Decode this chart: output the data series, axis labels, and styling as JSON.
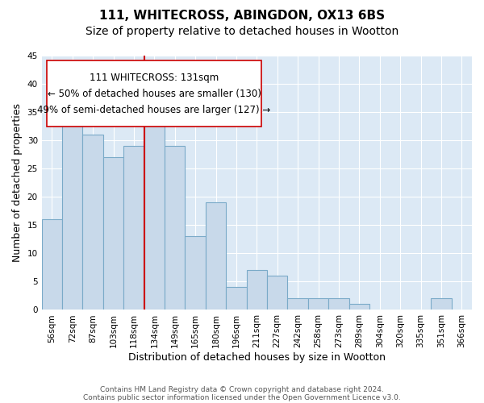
{
  "title": "111, WHITECROSS, ABINGDON, OX13 6BS",
  "subtitle": "Size of property relative to detached houses in Wootton",
  "xlabel": "Distribution of detached houses by size in Wootton",
  "ylabel": "Number of detached properties",
  "footer_lines": [
    "Contains HM Land Registry data © Crown copyright and database right 2024.",
    "Contains public sector information licensed under the Open Government Licence v3.0."
  ],
  "bins": [
    "56sqm",
    "72sqm",
    "87sqm",
    "103sqm",
    "118sqm",
    "134sqm",
    "149sqm",
    "165sqm",
    "180sqm",
    "196sqm",
    "211sqm",
    "227sqm",
    "242sqm",
    "258sqm",
    "273sqm",
    "289sqm",
    "304sqm",
    "320sqm",
    "335sqm",
    "351sqm",
    "366sqm"
  ],
  "values": [
    16,
    36,
    31,
    27,
    29,
    33,
    29,
    13,
    19,
    4,
    7,
    6,
    2,
    2,
    2,
    1,
    0,
    0,
    0,
    2,
    0
  ],
  "bar_color": "#c8d9ea",
  "bar_edge_color": "#7aaac8",
  "vline_x_idx": 5,
  "vline_color": "#cc0000",
  "annotation_box_text": "111 WHITECROSS: 131sqm\n← 50% of detached houses are smaller (130)\n49% of semi-detached houses are larger (127) →",
  "annotation_box_edge_color": "#cc0000",
  "annotation_fontsize": 8.5,
  "ylim": [
    0,
    45
  ],
  "yticks": [
    0,
    5,
    10,
    15,
    20,
    25,
    30,
    35,
    40,
    45
  ],
  "title_fontsize": 11,
  "subtitle_fontsize": 10,
  "xlabel_fontsize": 9,
  "ylabel_fontsize": 9,
  "tick_fontsize": 7.5,
  "footer_fontsize": 6.5,
  "bg_color": "#ffffff",
  "axes_bg_color": "#dce9f5",
  "grid_color": "#ffffff"
}
